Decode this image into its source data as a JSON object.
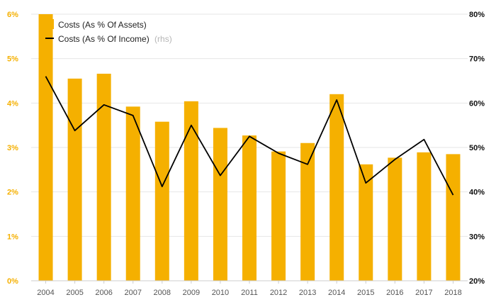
{
  "chart_data": {
    "type": "bar",
    "categories": [
      "2004",
      "2005",
      "2006",
      "2007",
      "2008",
      "2009",
      "2010",
      "2011",
      "2012",
      "2013",
      "2014",
      "2015",
      "2016",
      "2017",
      "2018"
    ],
    "series": [
      {
        "name": "Costs (As % Of Assets)",
        "type": "bar",
        "axis": "left",
        "values": [
          6.0,
          4.55,
          4.66,
          3.92,
          3.58,
          4.04,
          3.44,
          3.27,
          2.91,
          3.1,
          4.2,
          2.62,
          2.77,
          2.89,
          2.85
        ]
      },
      {
        "name": "Costs (As % Of Income)",
        "name_suffix": "(rhs)",
        "type": "line",
        "axis": "right",
        "values": [
          66.0,
          53.8,
          59.6,
          57.2,
          41.2,
          55.0,
          43.7,
          52.5,
          48.7,
          46.2,
          60.7,
          42.0,
          47.3,
          51.8,
          39.3
        ]
      }
    ],
    "ylim_left": [
      0,
      6
    ],
    "ylim_right": [
      20,
      80
    ],
    "left_ticks": [
      "0%",
      "1%",
      "2%",
      "3%",
      "4%",
      "5%",
      "6%"
    ],
    "right_ticks": [
      "20%",
      "30%",
      "40%",
      "50%",
      "60%",
      "70%",
      "80%"
    ],
    "grid": true,
    "legend_position": "top-left",
    "colors": {
      "bar": "#f5b000",
      "line": "#000000",
      "grid": "#e6e6e6",
      "left_tick": "#f5b000",
      "right_tick": "#111111"
    }
  }
}
